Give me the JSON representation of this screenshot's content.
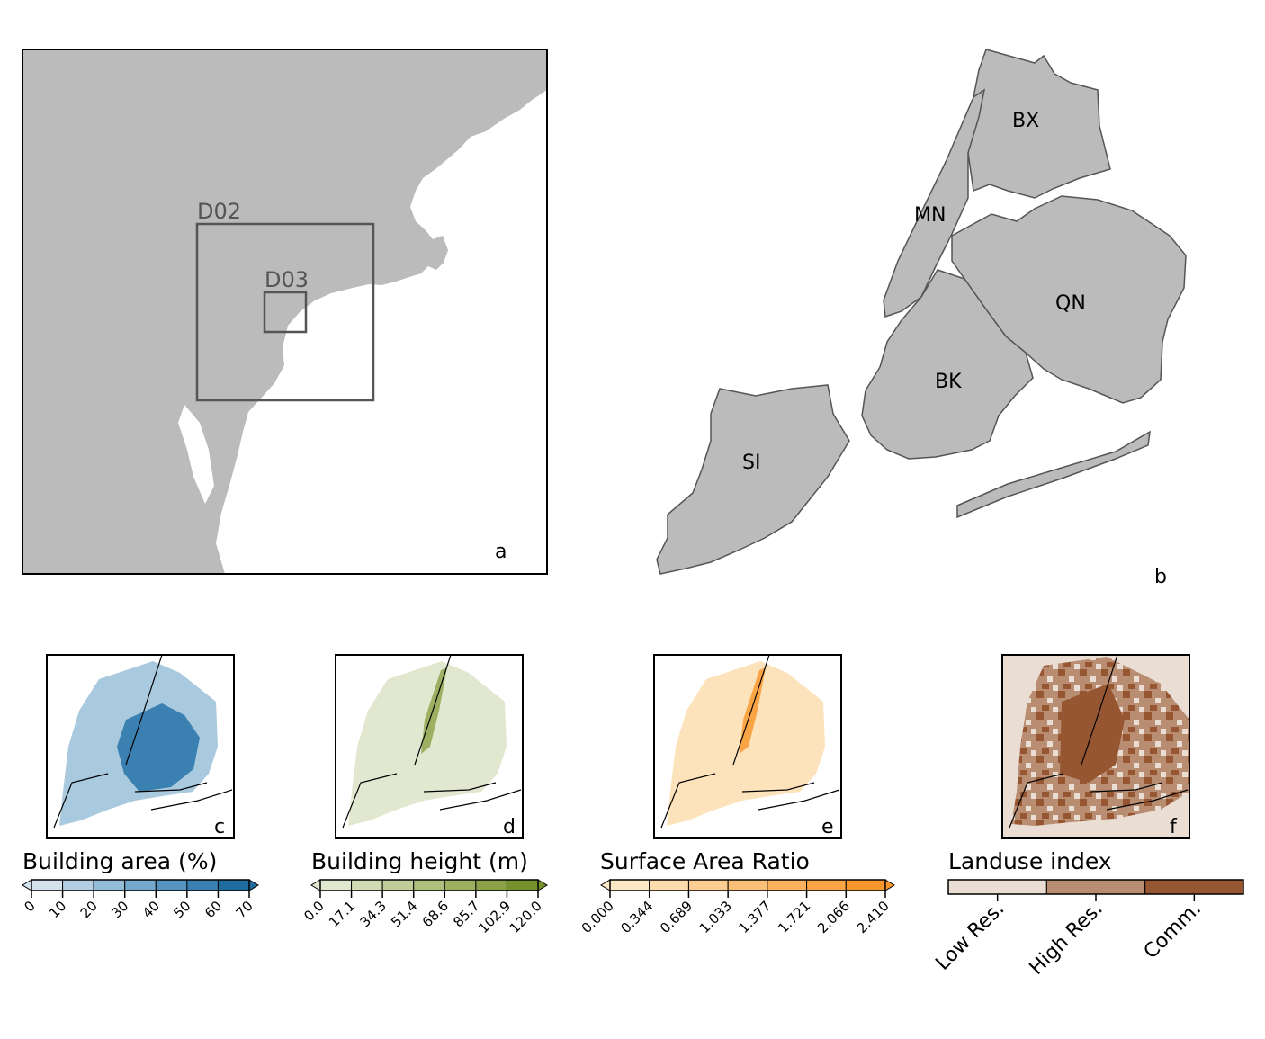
{
  "panels": {
    "a": {
      "label": "a",
      "domains": [
        {
          "name": "D02"
        },
        {
          "name": "D03"
        }
      ]
    },
    "b": {
      "label": "b",
      "boroughs": [
        "BX",
        "MN",
        "QN",
        "BK",
        "SI"
      ]
    },
    "c": {
      "label": "c"
    },
    "d": {
      "label": "d"
    },
    "e": {
      "label": "e"
    },
    "f": {
      "label": "f"
    }
  },
  "colorbars": [
    {
      "title": "Building area (%)",
      "ticks": [
        "0",
        "10",
        "20",
        "30",
        "40",
        "50",
        "60",
        "70"
      ],
      "colors": [
        "#d4e2ee",
        "#b4cfe3",
        "#93bcd8",
        "#74a8cc",
        "#5594bf",
        "#3a80b1",
        "#206ca1"
      ],
      "extend": "both"
    },
    {
      "title": "Building height (m)",
      "ticks": [
        "0.0",
        "17.1",
        "34.3",
        "51.4",
        "68.6",
        "85.7",
        "102.9",
        "120.0"
      ],
      "colors": [
        "#e2e8cf",
        "#d2dbb4",
        "#c1cd98",
        "#afbf7d",
        "#9db062",
        "#8aa147",
        "#76922d"
      ],
      "extend": "both"
    },
    {
      "title": "Surface Area Ratio",
      "ticks": [
        "0.000",
        "0.344",
        "0.689",
        "1.033",
        "1.377",
        "1.721",
        "2.066",
        "2.410"
      ],
      "colors": [
        "#fde8c5",
        "#fcdbac",
        "#fcce92",
        "#fbc078",
        "#fab25e",
        "#f9a545",
        "#f8982c"
      ],
      "extend": "both"
    },
    {
      "title": "Landuse index",
      "ticks": [
        "Low Res.",
        "High Res.",
        "Comm."
      ],
      "colors": [
        "#e9ddd4",
        "#b98d72",
        "#965632"
      ]
    }
  ]
}
